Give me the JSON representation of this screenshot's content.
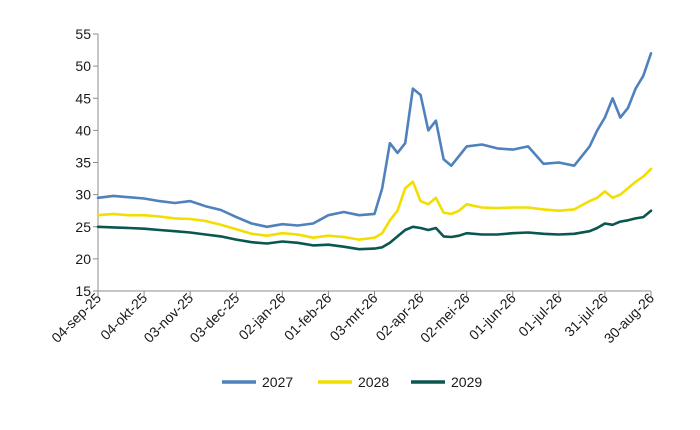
{
  "chart_data": {
    "type": "line",
    "title": "",
    "xlabel": "",
    "ylabel": "",
    "ylim": [
      15,
      55
    ],
    "yticks": [
      15,
      20,
      25,
      30,
      35,
      40,
      45,
      50,
      55
    ],
    "grid": false,
    "legend_position": "bottom",
    "x_tick_labels": [
      "04-sep-25",
      "04-okt-25",
      "03-nov-25",
      "03-dec-25",
      "02-jan-26",
      "01-feb-26",
      "03-mrt-26",
      "02-apr-26",
      "02-mei-26",
      "01-jun-26",
      "01-jul-26",
      "31-jul-26",
      "30-aug-26"
    ],
    "x": [
      "04-sep-25",
      "14-sep-25",
      "24-sep-25",
      "04-okt-25",
      "14-okt-25",
      "24-okt-25",
      "03-nov-25",
      "13-nov-25",
      "23-nov-25",
      "03-dec-25",
      "13-dec-25",
      "23-dec-25",
      "02-jan-26",
      "12-jan-26",
      "22-jan-26",
      "01-feb-26",
      "11-feb-26",
      "21-feb-26",
      "03-mrt-26",
      "08-mrt-26",
      "13-mrt-26",
      "18-mrt-26",
      "23-mrt-26",
      "28-mrt-26",
      "02-apr-26",
      "07-apr-26",
      "12-apr-26",
      "17-apr-26",
      "22-apr-26",
      "27-apr-26",
      "02-mei-26",
      "12-mei-26",
      "22-mei-26",
      "01-jun-26",
      "11-jun-26",
      "21-jun-26",
      "01-jul-26",
      "11-jul-26",
      "21-jul-26",
      "26-jul-26",
      "31-jul-26",
      "05-aug-26",
      "10-aug-26",
      "15-aug-26",
      "20-aug-26",
      "25-aug-26",
      "30-aug-26"
    ],
    "series": [
      {
        "name": "2027",
        "color": "#4f81bd",
        "values": [
          29.5,
          29.8,
          29.6,
          29.4,
          29.0,
          28.7,
          29.0,
          28.2,
          27.6,
          26.5,
          25.5,
          25.0,
          25.4,
          25.2,
          25.5,
          26.8,
          27.3,
          26.8,
          27.0,
          31.0,
          38.0,
          36.5,
          38.0,
          46.5,
          45.5,
          40.0,
          41.5,
          35.5,
          34.5,
          36.0,
          37.5,
          37.8,
          37.2,
          37.0,
          37.5,
          34.8,
          35.0,
          34.5,
          37.5,
          40.0,
          42.0,
          45.0,
          42.0,
          43.5,
          46.5,
          48.5,
          52.0
        ]
      },
      {
        "name": "2028",
        "color": "#f2de00",
        "values": [
          26.8,
          27.0,
          26.8,
          26.8,
          26.6,
          26.3,
          26.2,
          25.9,
          25.3,
          24.6,
          23.9,
          23.6,
          24.0,
          23.8,
          23.3,
          23.6,
          23.4,
          23.0,
          23.3,
          24.0,
          26.0,
          27.5,
          31.0,
          32.0,
          29.0,
          28.5,
          29.5,
          27.2,
          27.0,
          27.5,
          28.5,
          28.0,
          27.9,
          28.0,
          28.0,
          27.7,
          27.5,
          27.7,
          29.0,
          29.5,
          30.5,
          29.5,
          30.0,
          31.0,
          32.0,
          32.8,
          34.0
        ]
      },
      {
        "name": "2029",
        "color": "#0a5650",
        "values": [
          25.0,
          24.9,
          24.8,
          24.7,
          24.5,
          24.3,
          24.1,
          23.8,
          23.5,
          23.0,
          22.6,
          22.4,
          22.7,
          22.5,
          22.1,
          22.2,
          21.9,
          21.5,
          21.6,
          21.8,
          22.5,
          23.5,
          24.5,
          25.0,
          24.8,
          24.5,
          24.8,
          23.5,
          23.4,
          23.6,
          24.0,
          23.8,
          23.8,
          24.0,
          24.1,
          23.9,
          23.8,
          23.9,
          24.3,
          24.8,
          25.5,
          25.3,
          25.8,
          26.0,
          26.3,
          26.5,
          27.5
        ]
      }
    ]
  }
}
